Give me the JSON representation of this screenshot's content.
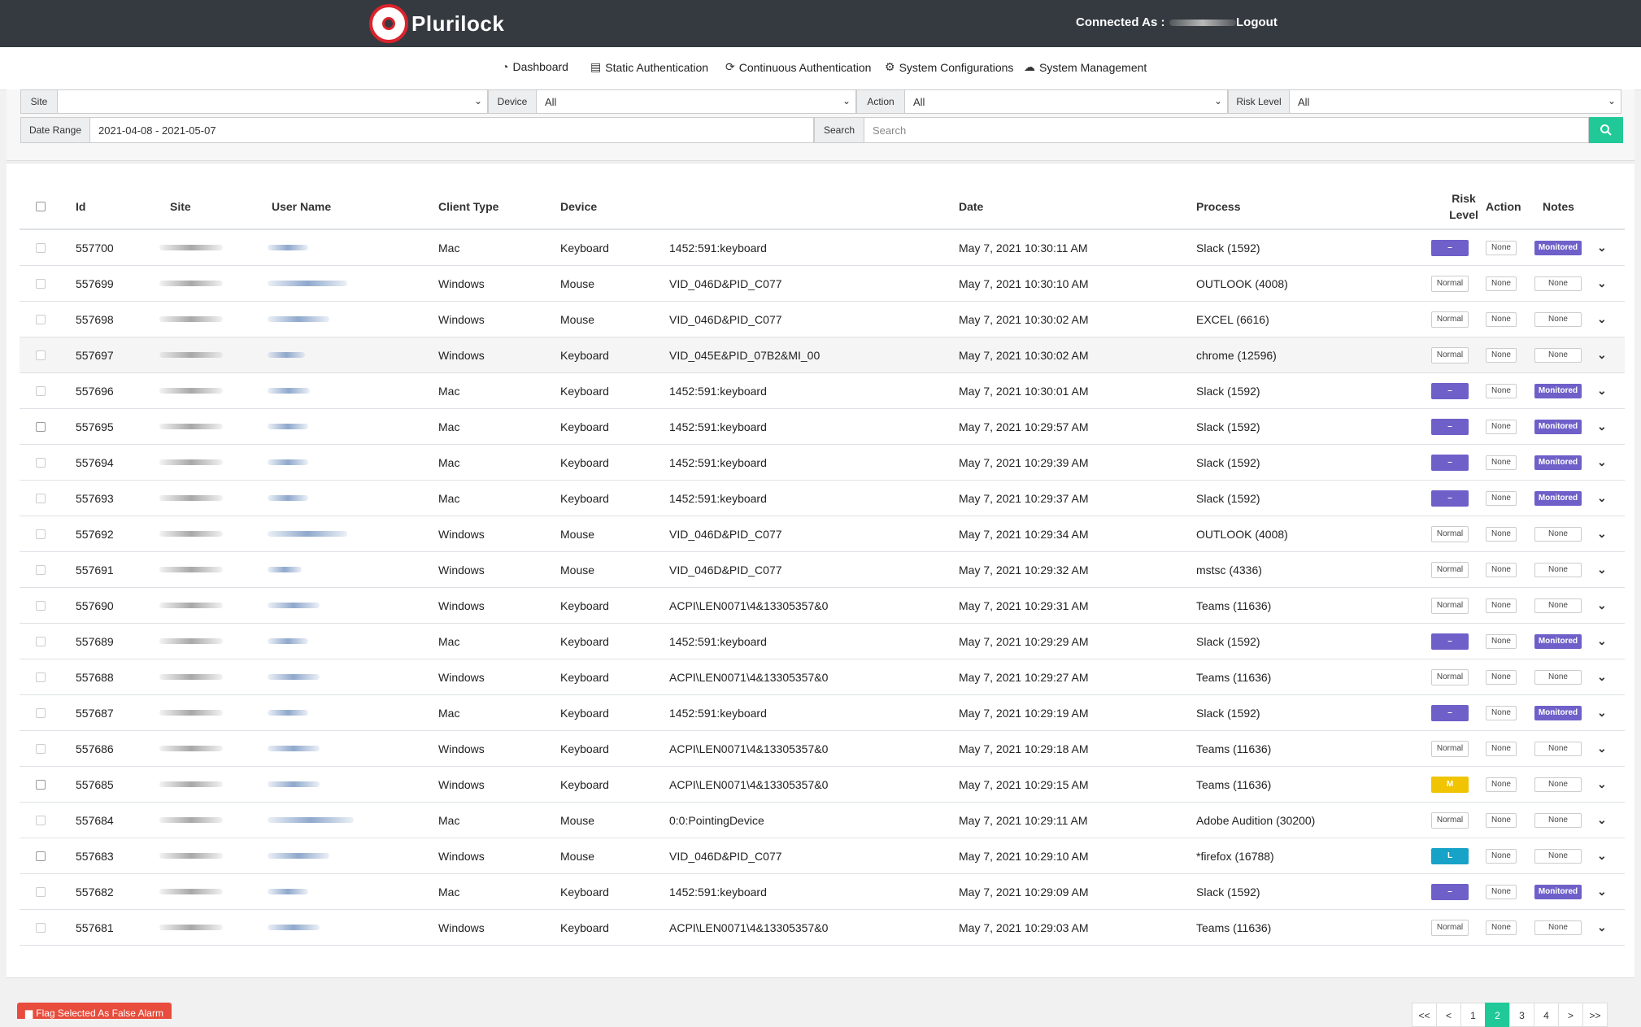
{
  "header": {
    "brand": "Plurilock",
    "connected_as_label": "Connected As :",
    "logout_label": "Logout"
  },
  "nav": {
    "items": [
      {
        "label": "Dashboard",
        "icon": "dashboard-icon"
      },
      {
        "label": "Static Authentication",
        "icon": "id-card-icon"
      },
      {
        "label": "Continuous Authentication",
        "icon": "refresh-icon"
      },
      {
        "label": "System Configurations",
        "icon": "gear-icon"
      },
      {
        "label": "System Management",
        "icon": "cloud-icon"
      }
    ]
  },
  "filters": {
    "site_label": "Site",
    "site_value": "",
    "device_label": "Device",
    "device_value": "All",
    "action_label": "Action",
    "action_value": "All",
    "risk_label": "Risk Level",
    "risk_value": "All",
    "date_label": "Date Range",
    "date_value": "2021-04-08 - 2021-05-07",
    "search_label": "Search",
    "search_placeholder": "Search"
  },
  "table": {
    "headers": {
      "id": "Id",
      "site": "Site",
      "user": "User Name",
      "client": "Client Type",
      "device": "Device",
      "date": "Date",
      "process": "Process",
      "risk_line1": "Risk",
      "risk_line2": "Level",
      "action": "Action",
      "notes": "Notes"
    },
    "rows": [
      {
        "id": "557700",
        "client": "Mac",
        "device": "Keyboard",
        "device_id": "1452:591:keyboard",
        "date": "May 7, 2021 10:30:11 AM",
        "process": "Slack (1592)",
        "risk": "–",
        "action": "None",
        "notes": "Monitored"
      },
      {
        "id": "557699",
        "client": "Windows",
        "device": "Mouse",
        "device_id": "VID_046D&PID_C077",
        "date": "May 7, 2021 10:30:10 AM",
        "process": "OUTLOOK (4008)",
        "risk": "Normal",
        "action": "None",
        "notes": "None"
      },
      {
        "id": "557698",
        "client": "Windows",
        "device": "Mouse",
        "device_id": "VID_046D&PID_C077",
        "date": "May 7, 2021 10:30:02 AM",
        "process": "EXCEL (6616)",
        "risk": "Normal",
        "action": "None",
        "notes": "None"
      },
      {
        "id": "557697",
        "client": "Windows",
        "device": "Keyboard",
        "device_id": "VID_045E&PID_07B2&MI_00",
        "date": "May 7, 2021 10:30:02 AM",
        "process": "chrome (12596)",
        "risk": "Normal",
        "action": "None",
        "notes": "None"
      },
      {
        "id": "557696",
        "client": "Mac",
        "device": "Keyboard",
        "device_id": "1452:591:keyboard",
        "date": "May 7, 2021 10:30:01 AM",
        "process": "Slack (1592)",
        "risk": "–",
        "action": "None",
        "notes": "Monitored"
      },
      {
        "id": "557695",
        "client": "Mac",
        "device": "Keyboard",
        "device_id": "1452:591:keyboard",
        "date": "May 7, 2021 10:29:57 AM",
        "process": "Slack (1592)",
        "risk": "–",
        "action": "None",
        "notes": "Monitored"
      },
      {
        "id": "557694",
        "client": "Mac",
        "device": "Keyboard",
        "device_id": "1452:591:keyboard",
        "date": "May 7, 2021 10:29:39 AM",
        "process": "Slack (1592)",
        "risk": "–",
        "action": "None",
        "notes": "Monitored"
      },
      {
        "id": "557693",
        "client": "Mac",
        "device": "Keyboard",
        "device_id": "1452:591:keyboard",
        "date": "May 7, 2021 10:29:37 AM",
        "process": "Slack (1592)",
        "risk": "–",
        "action": "None",
        "notes": "Monitored"
      },
      {
        "id": "557692",
        "client": "Windows",
        "device": "Mouse",
        "device_id": "VID_046D&PID_C077",
        "date": "May 7, 2021 10:29:34 AM",
        "process": "OUTLOOK (4008)",
        "risk": "Normal",
        "action": "None",
        "notes": "None"
      },
      {
        "id": "557691",
        "client": "Windows",
        "device": "Mouse",
        "device_id": "VID_046D&PID_C077",
        "date": "May 7, 2021 10:29:32 AM",
        "process": "mstsc (4336)",
        "risk": "Normal",
        "action": "None",
        "notes": "None"
      },
      {
        "id": "557690",
        "client": "Windows",
        "device": "Keyboard",
        "device_id": "ACPI\\LEN0071\\4&13305357&0",
        "date": "May 7, 2021 10:29:31 AM",
        "process": "Teams (11636)",
        "risk": "Normal",
        "action": "None",
        "notes": "None"
      },
      {
        "id": "557689",
        "client": "Mac",
        "device": "Keyboard",
        "device_id": "1452:591:keyboard",
        "date": "May 7, 2021 10:29:29 AM",
        "process": "Slack (1592)",
        "risk": "–",
        "action": "None",
        "notes": "Monitored"
      },
      {
        "id": "557688",
        "client": "Windows",
        "device": "Keyboard",
        "device_id": "ACPI\\LEN0071\\4&13305357&0",
        "date": "May 7, 2021 10:29:27 AM",
        "process": "Teams (11636)",
        "risk": "Normal",
        "action": "None",
        "notes": "None"
      },
      {
        "id": "557687",
        "client": "Mac",
        "device": "Keyboard",
        "device_id": "1452:591:keyboard",
        "date": "May 7, 2021 10:29:19 AM",
        "process": "Slack (1592)",
        "risk": "–",
        "action": "None",
        "notes": "Monitored"
      },
      {
        "id": "557686",
        "client": "Windows",
        "device": "Keyboard",
        "device_id": "ACPI\\LEN0071\\4&13305357&0",
        "date": "May 7, 2021 10:29:18 AM",
        "process": "Teams (11636)",
        "risk": "Normal",
        "action": "None",
        "notes": "None"
      },
      {
        "id": "557685",
        "client": "Windows",
        "device": "Keyboard",
        "device_id": "ACPI\\LEN0071\\4&13305357&0",
        "date": "May 7, 2021 10:29:15 AM",
        "process": "Teams (11636)",
        "risk": "M",
        "action": "None",
        "notes": "None"
      },
      {
        "id": "557684",
        "client": "Mac",
        "device": "Mouse",
        "device_id": "0:0:PointingDevice",
        "date": "May 7, 2021 10:29:11 AM",
        "process": "Adobe Audition (30200)",
        "risk": "Normal",
        "action": "None",
        "notes": "None"
      },
      {
        "id": "557683",
        "client": "Windows",
        "device": "Mouse",
        "device_id": "VID_046D&PID_C077",
        "date": "May 7, 2021 10:29:10 AM",
        "process": "*firefox (16788)",
        "risk": "L",
        "action": "None",
        "notes": "None"
      },
      {
        "id": "557682",
        "client": "Mac",
        "device": "Keyboard",
        "device_id": "1452:591:keyboard",
        "date": "May 7, 2021 10:29:09 AM",
        "process": "Slack (1592)",
        "risk": "–",
        "action": "None",
        "notes": "Monitored"
      },
      {
        "id": "557681",
        "client": "Windows",
        "device": "Keyboard",
        "device_id": "ACPI\\LEN0071\\4&13305357&0",
        "date": "May 7, 2021 10:29:03 AM",
        "process": "Teams (11636)",
        "risk": "Normal",
        "action": "None",
        "notes": "None"
      }
    ]
  },
  "footer": {
    "flag_button_label": "Flag Selected As False Alarm",
    "pages": [
      "<<",
      "<",
      "1",
      "2",
      "3",
      "4",
      ">",
      ">>"
    ],
    "active_page": "2"
  },
  "colors": {
    "topbar": "#343a40",
    "accent": "#20c997",
    "risk_dash": "#6f5fc9",
    "risk_medium": "#f0c400",
    "risk_low": "#17a2c8",
    "danger": "#e74c3c"
  }
}
